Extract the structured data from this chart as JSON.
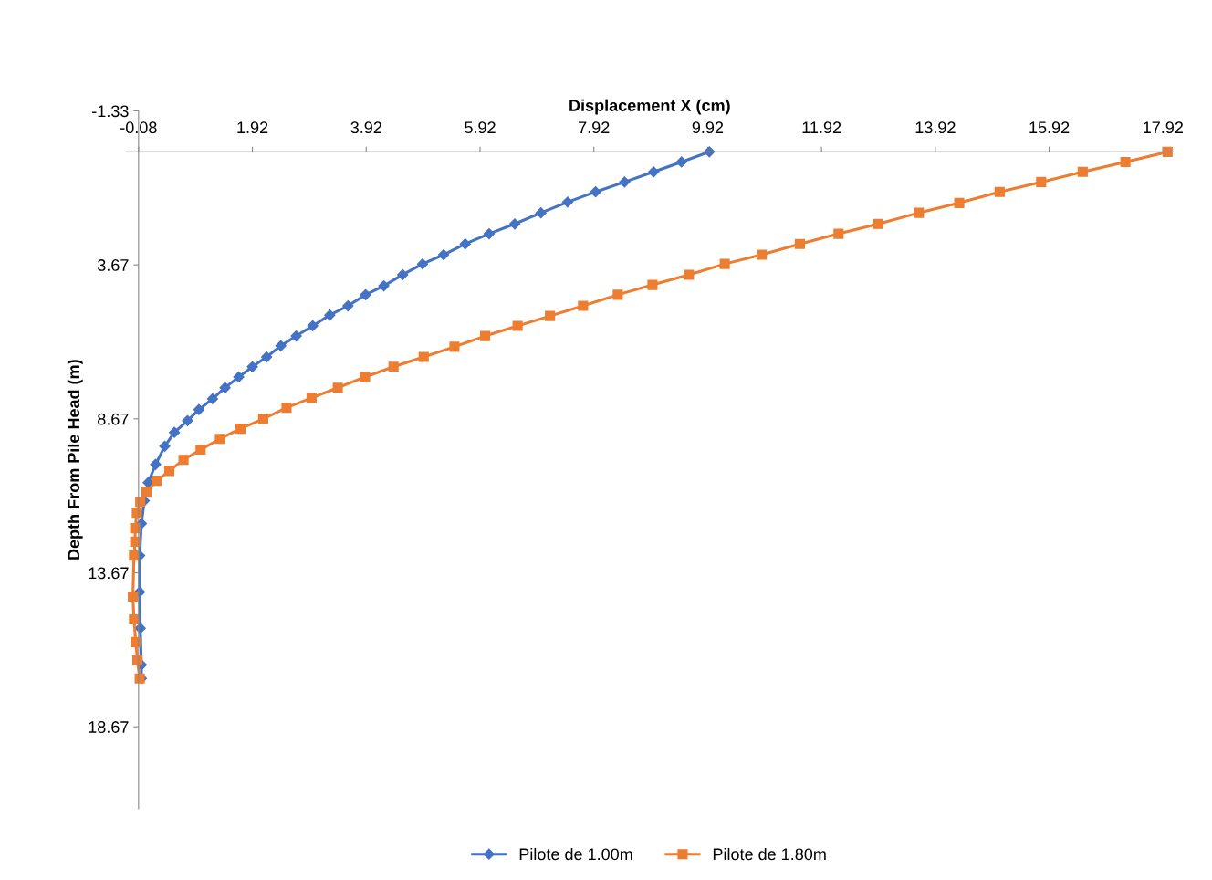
{
  "chart_data": {
    "type": "line",
    "xlabel": "Displacement X (cm)",
    "ylabel": "Depth From Pile Head (m)",
    "xlim": [
      -0.3,
      18.1
    ],
    "xticks": [
      -0.08,
      1.92,
      3.92,
      5.92,
      7.92,
      9.92,
      11.92,
      13.92,
      15.92,
      17.92
    ],
    "ylim": [
      21.33,
      -1.33
    ],
    "yticks": [
      -1.33,
      3.67,
      8.67,
      13.67,
      18.67
    ],
    "grid": false,
    "legend": "bottom",
    "series": [
      {
        "name": "Pilote de 1.00m",
        "color": "#4472c4",
        "marker": "diamond",
        "x": [
          9.95,
          9.46,
          8.97,
          8.46,
          7.95,
          7.46,
          6.99,
          6.53,
          6.08,
          5.66,
          5.28,
          4.91,
          4.56,
          4.23,
          3.91,
          3.6,
          3.28,
          2.98,
          2.69,
          2.42,
          2.17,
          1.92,
          1.68,
          1.44,
          1.22,
          0.98,
          0.78,
          0.55,
          0.38,
          0.22,
          0.09,
          0.02,
          -0.03,
          -0.06,
          -0.06,
          -0.05,
          -0.03,
          -0.03
        ],
        "values": [
          0,
          0.33,
          0.65,
          0.98,
          1.3,
          1.63,
          1.98,
          2.34,
          2.66,
          2.99,
          3.34,
          3.64,
          3.99,
          4.35,
          4.64,
          5.0,
          5.3,
          5.65,
          5.98,
          6.3,
          6.66,
          6.98,
          7.31,
          7.66,
          8.02,
          8.37,
          8.73,
          9.11,
          9.56,
          10.15,
          10.74,
          11.33,
          12.07,
          13.11,
          14.29,
          15.47,
          16.66,
          17.1
        ]
      },
      {
        "name": "Pilote de 1.80m",
        "color": "#ed7d31",
        "marker": "square",
        "x": [
          18.0,
          17.26,
          16.51,
          15.78,
          15.05,
          14.34,
          13.63,
          12.92,
          12.22,
          11.54,
          10.87,
          10.22,
          9.59,
          8.95,
          8.34,
          7.73,
          7.15,
          6.58,
          6.01,
          5.47,
          4.93,
          4.4,
          3.9,
          3.42,
          2.96,
          2.52,
          2.11,
          1.71,
          1.35,
          1.01,
          0.71,
          0.46,
          0.24,
          0.06,
          -0.05,
          -0.11,
          -0.14,
          -0.14,
          -0.16,
          -0.18,
          -0.16,
          -0.13,
          -0.1,
          -0.06
        ],
        "values": [
          0,
          0.33,
          0.65,
          0.98,
          1.3,
          1.66,
          1.98,
          2.34,
          2.66,
          2.99,
          3.34,
          3.64,
          3.99,
          4.32,
          4.64,
          5.0,
          5.33,
          5.65,
          5.98,
          6.33,
          6.66,
          6.98,
          7.31,
          7.66,
          7.99,
          8.31,
          8.67,
          8.99,
          9.32,
          9.67,
          10.0,
          10.36,
          10.68,
          11.04,
          11.36,
          11.72,
          12.22,
          12.66,
          13.11,
          14.44,
          15.18,
          15.92,
          16.51,
          17.1
        ]
      }
    ]
  }
}
